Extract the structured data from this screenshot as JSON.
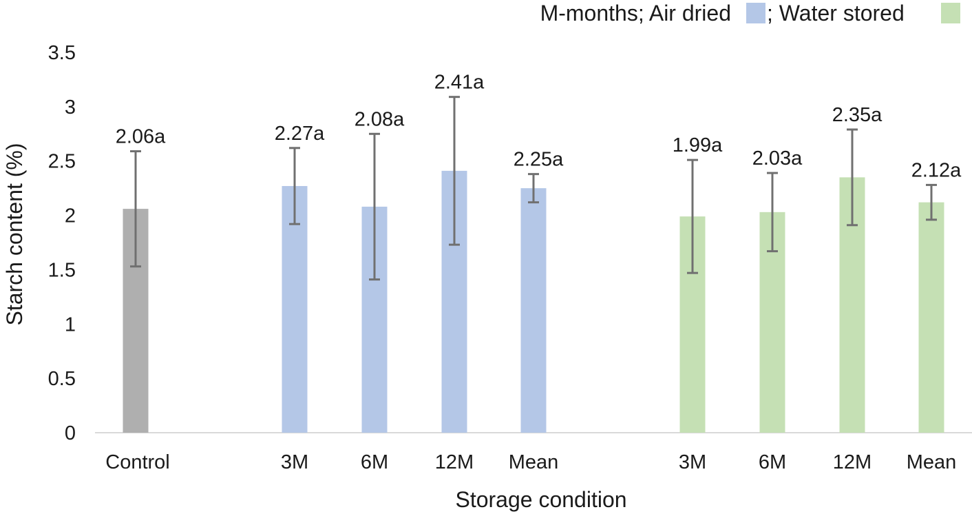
{
  "chart_data": {
    "type": "bar",
    "title": "",
    "xlabel": "Storage condition",
    "ylabel": "Starch content (%)",
    "ylim": [
      0,
      3.5
    ],
    "yticks": [
      "0",
      "0.5",
      "1",
      "1.5",
      "2",
      "2.5",
      "3",
      "3.5"
    ],
    "grid": false,
    "legend_placement": "top-right",
    "legend": {
      "prefix": "M-months; Air dried",
      "separator": "; Water stored",
      "entries": [
        {
          "name": "Air dried",
          "color": "#b4c7e7"
        },
        {
          "name": "Water stored",
          "color": "#c5e0b4"
        }
      ]
    },
    "categories": [
      "Control",
      "3M",
      "6M",
      "12M",
      "Mean",
      "3M",
      "6M",
      "12M",
      "Mean"
    ],
    "groups": [
      "Control",
      "Air dried",
      "Air dried",
      "Air dried",
      "Air dried",
      "Water stored",
      "Water stored",
      "Water stored",
      "Water stored"
    ],
    "values": [
      2.06,
      2.27,
      2.08,
      2.41,
      2.25,
      1.99,
      2.03,
      2.35,
      2.12
    ],
    "error": [
      0.53,
      0.35,
      0.67,
      0.68,
      0.13,
      0.52,
      0.36,
      0.44,
      0.16
    ],
    "labels": [
      "2.06a",
      "2.27a",
      "2.08a",
      "2.41a",
      "2.25a",
      "1.99a",
      "2.03a",
      "2.35a",
      "2.12a"
    ],
    "colors": [
      "#afafaf",
      "#b4c7e7",
      "#b4c7e7",
      "#b4c7e7",
      "#b4c7e7",
      "#c5e0b4",
      "#c5e0b4",
      "#c5e0b4",
      "#c5e0b4"
    ],
    "error_bar_color": "#707070",
    "axis_color": "#d9d9d9"
  }
}
